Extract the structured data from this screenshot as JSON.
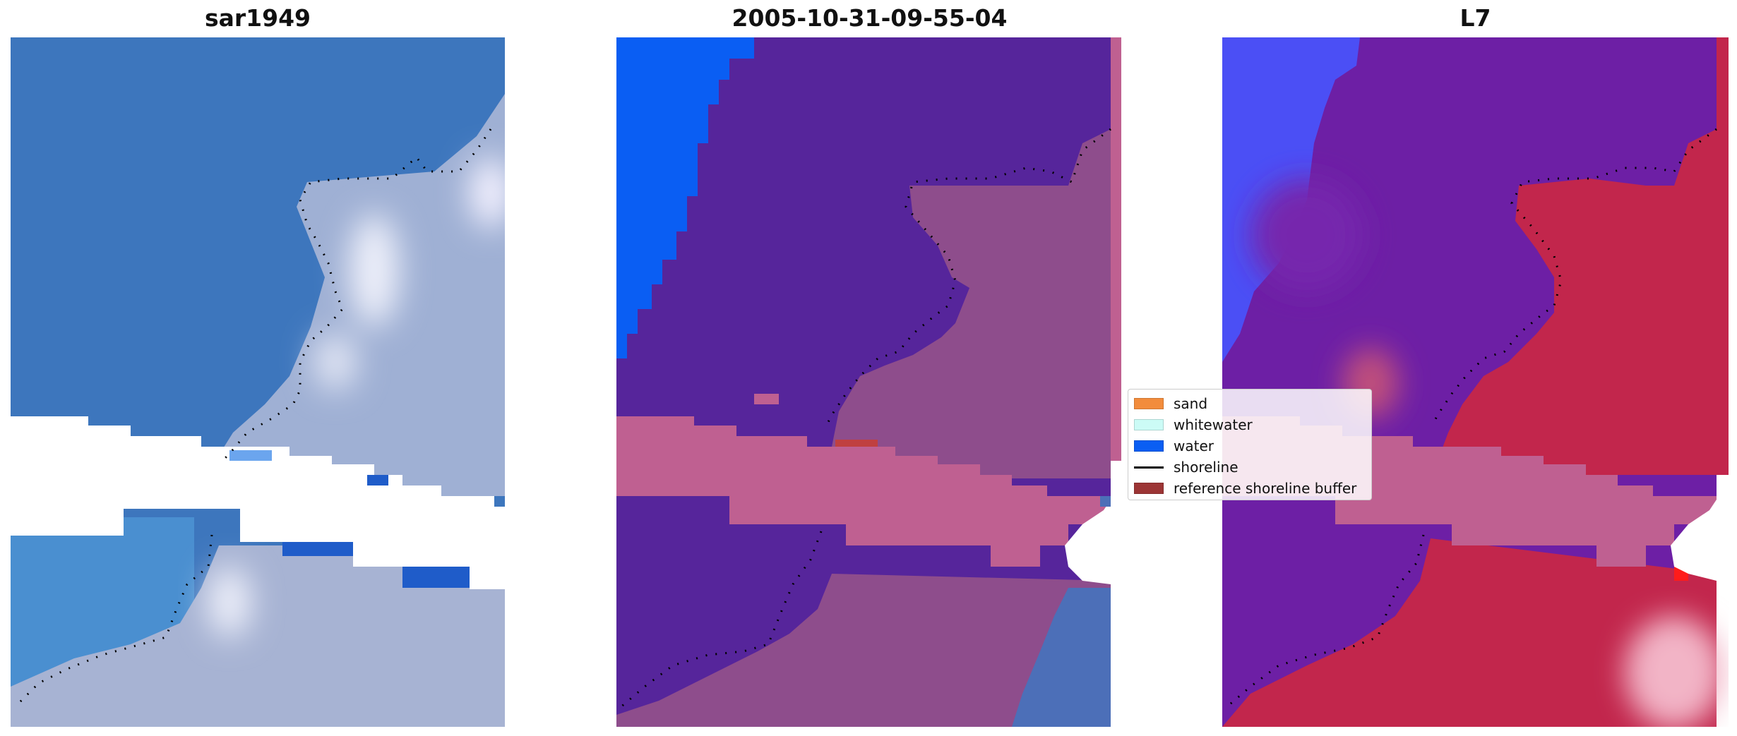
{
  "titles": [
    "sar1949",
    "2005-10-31-09-55-04",
    "L7"
  ],
  "legend": {
    "items": [
      {
        "label": "sand",
        "color": "#f28c3c",
        "kind": "patch"
      },
      {
        "label": "whitewater",
        "color": "#ccfbf6",
        "kind": "patch"
      },
      {
        "label": "water",
        "color": "#0a5ef3",
        "kind": "patch"
      },
      {
        "label": "shoreline",
        "color": "#000000",
        "kind": "line"
      },
      {
        "label": "reference shoreline buffer",
        "color": "#9c3535",
        "kind": "patch"
      }
    ]
  },
  "colors": {
    "panel1_water": "#3d76bd",
    "panel1_land": "#9fb0d4",
    "panel2_class_water": "#56259b",
    "panel2_open_water": "#0a5ef3",
    "panel2_land": "#8e4d8c",
    "panel2_buffer": "#bf6091",
    "panel3_water": "#6d1fa5",
    "panel3_blue": "#4b4ff5",
    "panel3_land": "#c2264c",
    "panel3_buffer": "#bf6091",
    "nodata": "#ffffff"
  }
}
